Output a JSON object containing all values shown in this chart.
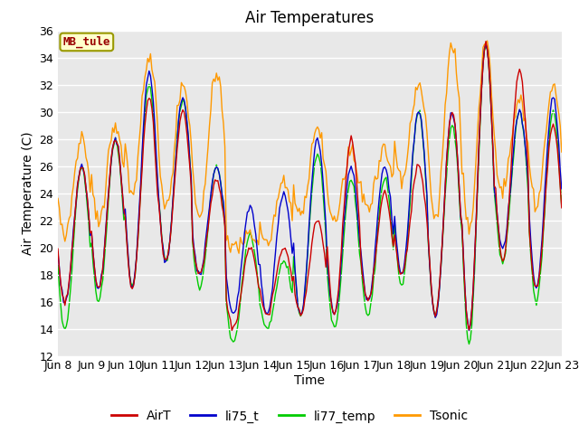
{
  "title": "Air Temperatures",
  "ylabel": "Air Temperature (C)",
  "xlabel": "Time",
  "ylim": [
    12,
    36
  ],
  "yticks": [
    12,
    14,
    16,
    18,
    20,
    22,
    24,
    26,
    28,
    30,
    32,
    34,
    36
  ],
  "colors": {
    "AirT": "#cc0000",
    "li75_t": "#0000cc",
    "li77_temp": "#00cc00",
    "Tsonic": "#ff9900"
  },
  "bg_color": "#e8e8e8",
  "plot_bg": "#e8e8e8",
  "annotation_label": "MB_tule",
  "annotation_bg": "#ffffcc",
  "annotation_fg": "#990000",
  "annotation_border": "#999900",
  "title_fontsize": 12,
  "axis_label_fontsize": 10,
  "tick_fontsize": 9,
  "legend_fontsize": 10,
  "n_days": 15,
  "day_start": 8,
  "peaks_AirT": [
    26,
    28,
    31,
    30,
    25,
    20,
    20,
    22,
    28,
    24,
    26,
    30,
    35,
    33,
    29
  ],
  "troughs_AirT": [
    16,
    17,
    17,
    19,
    18,
    14,
    15,
    15,
    15,
    16,
    18,
    15,
    14,
    19,
    17
  ],
  "peaks_li75": [
    26,
    28,
    33,
    31,
    26,
    23,
    24,
    28,
    26,
    26,
    30,
    30,
    35,
    30,
    31
  ],
  "troughs_li75": [
    16,
    17,
    17,
    19,
    18,
    15,
    15,
    15,
    15,
    16,
    18,
    15,
    14,
    20,
    17
  ],
  "peaks_li77": [
    26,
    28,
    32,
    31,
    26,
    21,
    19,
    27,
    25,
    25,
    30,
    29,
    35,
    30,
    30
  ],
  "troughs_li77": [
    14,
    16,
    17,
    19,
    17,
    13,
    14,
    15,
    14,
    15,
    17,
    15,
    13,
    19,
    16
  ],
  "peaks_Tsonic": [
    28,
    29,
    34,
    32,
    33,
    21,
    25,
    29,
    27,
    27,
    32,
    35,
    35,
    31,
    32
  ],
  "troughs_Tsonic": [
    21,
    22,
    24,
    23,
    22,
    20,
    20,
    22,
    22,
    23,
    25,
    22,
    21,
    24,
    23
  ]
}
